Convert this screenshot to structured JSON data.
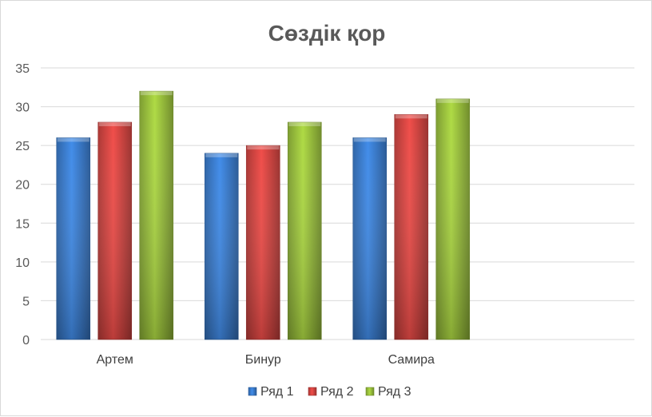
{
  "chart_data": {
    "type": "bar",
    "title": "Сөздік қор",
    "categories": [
      "Артем",
      "Бинур",
      "Самира"
    ],
    "series": [
      {
        "name": "Ряд 1",
        "values": [
          26,
          24,
          26
        ],
        "color": "#3a7dd0"
      },
      {
        "name": "Ряд 2",
        "values": [
          28,
          25,
          29
        ],
        "color": "#d64541"
      },
      {
        "name": "Ряд 3",
        "values": [
          32,
          28,
          31
        ],
        "color": "#9bc33c"
      }
    ],
    "ylim": [
      0,
      35
    ],
    "yticks": [
      0,
      5,
      10,
      15,
      20,
      25,
      30,
      35
    ],
    "grid": true,
    "legend_position": "bottom"
  }
}
